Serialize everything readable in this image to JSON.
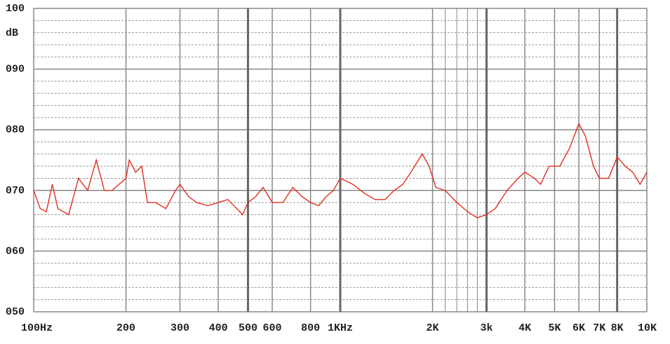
{
  "chart_data": {
    "type": "line",
    "ylabel": "dB",
    "log_x": true,
    "xlim": [
      100,
      10000
    ],
    "xticks": [
      {
        "value": 100,
        "label": "100Hz"
      },
      200,
      300,
      400,
      500,
      600,
      800,
      {
        "value": 1000,
        "label": "1KHz"
      },
      {
        "value": 2000,
        "label": "2K"
      },
      {
        "value": 3000,
        "label": "3k"
      },
      {
        "value": 4000,
        "label": "4K"
      },
      {
        "value": 5000,
        "label": "5K"
      },
      {
        "value": 6000,
        "label": "6K"
      },
      {
        "value": 7000,
        "label": "7K"
      },
      {
        "value": 8000,
        "label": "8K"
      },
      {
        "value": 10000,
        "label": "10K"
      }
    ],
    "xminor": [
      2200,
      2400,
      2600,
      2800
    ],
    "ylim": [
      50,
      100
    ],
    "yticks": [
      {
        "value": 50,
        "label": "050"
      },
      {
        "value": 60,
        "label": "060"
      },
      {
        "value": 70,
        "label": "070"
      },
      {
        "value": 80,
        "label": "080"
      },
      {
        "value": 90,
        "label": "090"
      },
      100
    ],
    "yminor": [
      52,
      54,
      56,
      58,
      62,
      64,
      66,
      68,
      72,
      74,
      76,
      78,
      82,
      84,
      86,
      88,
      92,
      94,
      96,
      98
    ],
    "grid": true,
    "series": [
      {
        "color": "#e03020",
        "x": [
          100,
          105,
          110,
          115,
          120,
          130,
          140,
          150,
          160,
          170,
          180,
          200,
          205,
          215,
          225,
          235,
          250,
          270,
          290,
          300,
          320,
          340,
          370,
          400,
          430,
          460,
          480,
          500,
          530,
          560,
          600,
          650,
          700,
          750,
          800,
          850,
          900,
          950,
          1000,
          1100,
          1200,
          1300,
          1400,
          1500,
          1600,
          1700,
          1850,
          1950,
          2050,
          2200,
          2400,
          2600,
          2800,
          3000,
          3200,
          3500,
          3800,
          4000,
          4300,
          4500,
          4800,
          5200,
          5600,
          6000,
          6300,
          6700,
          7000,
          7500,
          8000,
          8500,
          9000,
          9500,
          10000
        ],
        "values": [
          70,
          67,
          66.5,
          71,
          67,
          66,
          72,
          70,
          75,
          70,
          70,
          72,
          75,
          73,
          74,
          68,
          68,
          67,
          70,
          71,
          69,
          68,
          67.5,
          68,
          68.5,
          67,
          66,
          68,
          69,
          70.5,
          68,
          68,
          70.5,
          69,
          68,
          67.5,
          69,
          70,
          72,
          71,
          69.5,
          68.5,
          68.5,
          70,
          71,
          73,
          76,
          74,
          70.5,
          70,
          68,
          66.5,
          65.5,
          66,
          67,
          70,
          72,
          73,
          72,
          71,
          74,
          74,
          77,
          81,
          79,
          74,
          72,
          72,
          75.5,
          74,
          73,
          71,
          73
        ]
      }
    ]
  }
}
